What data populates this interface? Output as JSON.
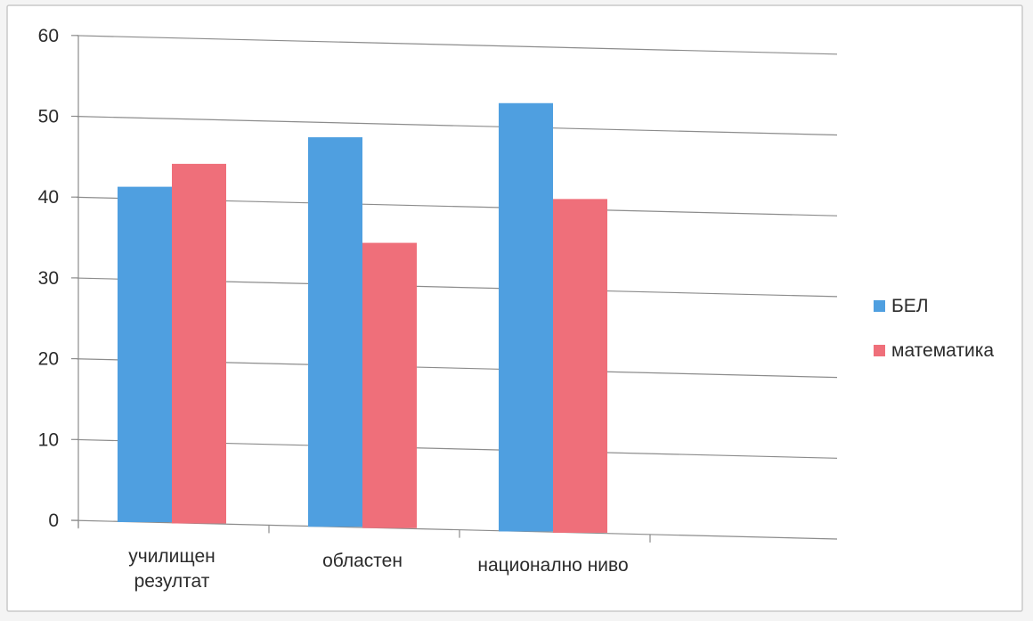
{
  "chart_data": {
    "type": "bar",
    "categories": [
      [
        "училищен",
        "резултат"
      ],
      [
        "областен"
      ],
      [
        "национално ниво"
      ]
    ],
    "series": [
      {
        "name": "БЕЛ",
        "color": "#4f9fe0",
        "values": [
          41.5,
          48.2,
          53.0
        ]
      },
      {
        "name": "математика",
        "color": "#ef6f7a",
        "values": [
          44.5,
          35.3,
          41.3
        ]
      }
    ],
    "yticks": [
      "0",
      "10",
      "20",
      "30",
      "40",
      "50",
      "60"
    ],
    "ylim": [
      0,
      60
    ],
    "grid": true,
    "legend_position": "right"
  }
}
